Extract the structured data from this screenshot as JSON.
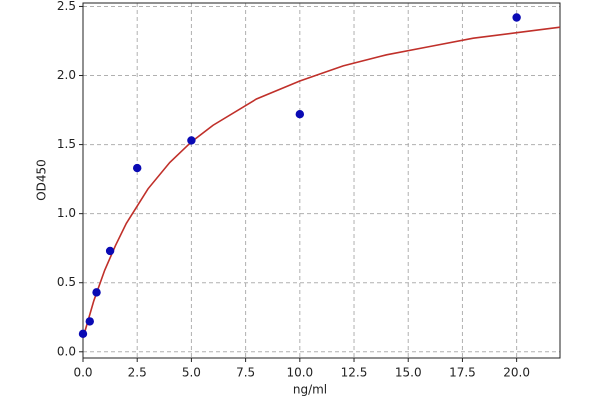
{
  "chart_data": {
    "type": "scatter",
    "x_label": "ng/ml",
    "y_label": "OD450",
    "xlim": [
      0,
      22
    ],
    "ylim": [
      -0.045,
      2.525
    ],
    "xticks": [
      {
        "value": 0,
        "label": "0.0"
      },
      2.5,
      {
        "value": 5,
        "label": "5.0"
      },
      7.5,
      {
        "value": 10,
        "label": "10.0"
      },
      12.5,
      {
        "value": 15,
        "label": "15.0"
      },
      17.5,
      {
        "value": 20,
        "label": "20.0"
      }
    ],
    "yticks": [
      {
        "value": 0,
        "label": "0.0"
      },
      0.5,
      {
        "value": 1,
        "label": "1.0"
      },
      1.5,
      {
        "value": 2,
        "label": "2.0"
      },
      2.5
    ],
    "grid": true,
    "series": [
      {
        "type": "scatter",
        "color": "#0a0ab4",
        "x": [
          0,
          0.3125,
          0.625,
          1.25,
          2.5,
          5,
          10,
          20
        ],
        "values": [
          0.13,
          0.22,
          0.43,
          0.73,
          1.33,
          1.53,
          1.72,
          2.42
        ]
      },
      {
        "type": "line",
        "color": "#c0302a",
        "x": [
          0,
          0.5,
          1,
          1.5,
          2,
          3,
          4,
          5,
          6,
          8,
          10,
          12,
          14,
          16,
          18,
          20,
          22
        ],
        "values": [
          0.1,
          0.37,
          0.59,
          0.77,
          0.93,
          1.18,
          1.37,
          1.52,
          1.64,
          1.83,
          1.96,
          2.07,
          2.15,
          2.21,
          2.27,
          2.31,
          2.35
        ]
      }
    ]
  }
}
